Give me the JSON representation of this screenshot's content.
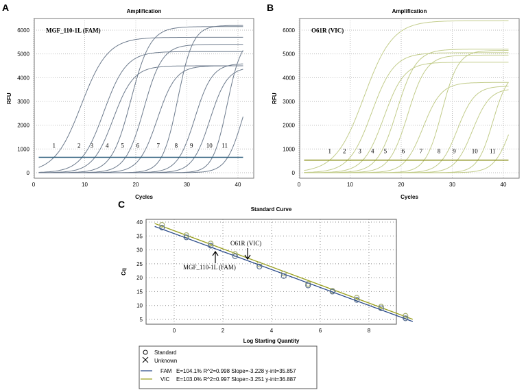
{
  "chart_data": [
    {
      "panel": "A",
      "type": "line",
      "title": "Amplification",
      "xlabel": "Cycles",
      "ylabel": "RFU",
      "xlim": [
        0,
        43
      ],
      "ylim": [
        -150,
        6700
      ],
      "xticks": [
        0,
        10,
        20,
        30,
        40
      ],
      "yticks": [
        0,
        1000,
        2000,
        3000,
        4000,
        5000,
        6000
      ],
      "grid": true,
      "annotation": "MGF_110-1L (FAM)",
      "threshold": 650,
      "color": "#6c7a8c",
      "threshold_color": "#2a5c7a",
      "curve_labels": [
        "1",
        "2",
        "3",
        "4",
        "5",
        "6",
        "7",
        "8",
        "9",
        "10",
        "11"
      ],
      "series": [
        {
          "name": "1",
          "ct": 4,
          "plateau": 5700,
          "k": 2.6
        },
        {
          "name": "2",
          "ct": 9.5,
          "plateau": 5100,
          "k": 2.2
        },
        {
          "name": "3",
          "ct": 12,
          "plateau": 4500,
          "k": 2.0
        },
        {
          "name": "4",
          "ct": 15,
          "plateau": 6150,
          "k": 1.9
        },
        {
          "name": "5",
          "ct": 18,
          "plateau": 5400,
          "k": 1.8
        },
        {
          "name": "6",
          "ct": 21,
          "plateau": 4500,
          "k": 1.8
        },
        {
          "name": "7",
          "ct": 25,
          "plateau": 6200,
          "k": 1.5
        },
        {
          "name": "8",
          "ct": 28.5,
          "plateau": 4600,
          "k": 1.7
        },
        {
          "name": "9",
          "ct": 31.5,
          "plateau": 4450,
          "k": 1.7
        },
        {
          "name": "10",
          "ct": 35,
          "plateau": 5700,
          "k": 1.4
        },
        {
          "name": "11",
          "ct": 38,
          "plateau": 4500,
          "k": 1.6
        }
      ]
    },
    {
      "panel": "B",
      "type": "line",
      "title": "Amplification",
      "xlabel": "Cycles",
      "ylabel": "RFU",
      "xlim": [
        0,
        43
      ],
      "ylim": [
        -150,
        6700
      ],
      "xticks": [
        0,
        10,
        20,
        30,
        40
      ],
      "yticks": [
        0,
        1000,
        2000,
        3000,
        4000,
        5000,
        6000
      ],
      "grid": true,
      "annotation": "O61R (VIC)",
      "threshold": 530,
      "color": "#c2cc8a",
      "threshold_color": "#8a8f1a",
      "curve_labels": [
        "1",
        "2",
        "3",
        "4",
        "5",
        "6",
        "7",
        "8",
        "9",
        "10",
        "11"
      ],
      "series": [
        {
          "name": "1",
          "ct": 6,
          "plateau": 6400,
          "k": 2.8
        },
        {
          "name": "2",
          "ct": 9.5,
          "plateau": 5050,
          "k": 2.2
        },
        {
          "name": "3",
          "ct": 12.5,
          "plateau": 4650,
          "k": 2.0
        },
        {
          "name": "4",
          "ct": 15,
          "plateau": 5200,
          "k": 1.9
        },
        {
          "name": "5",
          "ct": 17.5,
          "plateau": 4950,
          "k": 1.8
        },
        {
          "name": "6",
          "ct": 21,
          "plateau": 3800,
          "k": 1.8
        },
        {
          "name": "7",
          "ct": 24.5,
          "plateau": 5150,
          "k": 1.6
        },
        {
          "name": "8",
          "ct": 28,
          "plateau": 3650,
          "k": 1.7
        },
        {
          "name": "9",
          "ct": 31,
          "plateau": 3550,
          "k": 1.7
        },
        {
          "name": "10",
          "ct": 35,
          "plateau": 4300,
          "k": 1.5
        },
        {
          "name": "11",
          "ct": 38.5,
          "plateau": 4000,
          "k": 1.7
        }
      ]
    },
    {
      "panel": "C",
      "type": "scatter",
      "title": "Standard Curve",
      "xlabel": "Log Starting Quantity",
      "ylabel": "Cq",
      "xlim": [
        -1.1,
        9.9
      ],
      "ylim": [
        3,
        40.5
      ],
      "xticks": [
        0,
        2,
        4,
        6,
        8
      ],
      "yticks": [
        5,
        10,
        15,
        20,
        25,
        30,
        35,
        40
      ],
      "grid": true,
      "x": [
        -0.5,
        0.5,
        1.5,
        2.5,
        3.5,
        4.5,
        5.5,
        6.5,
        7.5,
        8.5,
        9.5
      ],
      "series": [
        {
          "name": "FAM",
          "color": "#2a4a8a",
          "values": [
            38,
            34.5,
            31.5,
            27.7,
            24,
            20.6,
            17.2,
            15,
            12,
            9,
            5.4
          ],
          "slope": -3.228,
          "yint": 35.857,
          "stats": "E=104.1% R^2=0.998 Slope=-3.228 y-int=35.857"
        },
        {
          "name": "VIC",
          "color": "#9aa020",
          "values": [
            39,
            35.3,
            32.3,
            28.5,
            24.8,
            21.5,
            17.8,
            15.3,
            12.8,
            9.6,
            6.3
          ],
          "slope": -3.251,
          "yint": 36.887,
          "stats": "E=103.0% R^2=0.997 Slope=-3.251 y-int=36.887"
        }
      ],
      "annotations": [
        "O61R (VIC)",
        "MGF_110-1L (FAM)"
      ],
      "legend": {
        "standard": "Standard",
        "unknown": "Unknown"
      }
    }
  ],
  "panel_labels": [
    "A",
    "B",
    "C"
  ]
}
